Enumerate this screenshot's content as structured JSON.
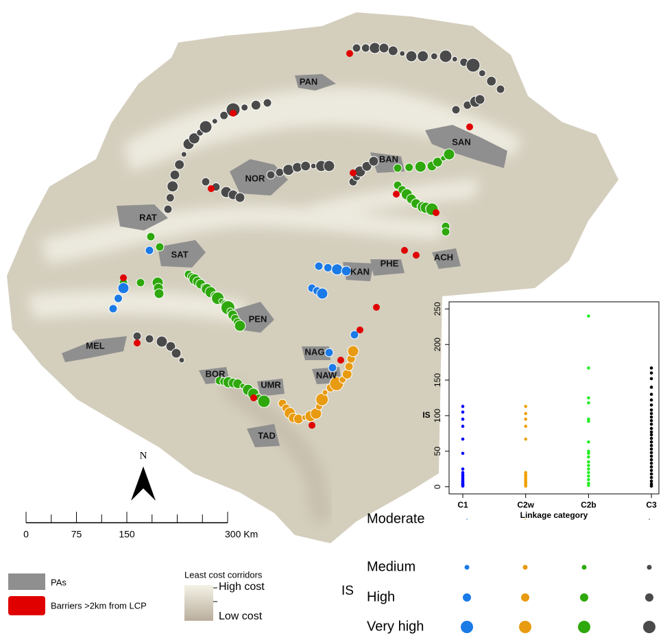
{
  "map": {
    "labels": [
      "PAN",
      "SAN",
      "BAN",
      "NOR",
      "RAT",
      "SAT",
      "PHE",
      "ACH",
      "KAN",
      "PEN",
      "MEL",
      "NAG",
      "NAW",
      "BOR",
      "UMR",
      "TAD"
    ],
    "north": "N",
    "scale_bar": {
      "ticks": [
        0,
        75,
        150,
        {
          "value": 300,
          "label": "300 Km"
        }
      ]
    }
  },
  "legend": {
    "pas": "PAs",
    "barriers": "Barriers >2km from LCP",
    "corridors_title": "Least cost corridors",
    "high_cost": "High cost",
    "low_cost": "Low cost",
    "is_title": "IS",
    "is_levels": [
      "Moderate",
      "Medium",
      "High",
      "Very high"
    ]
  },
  "chart_data": {
    "type": "scatter",
    "x_label": "Linkage category",
    "y_label": "IS",
    "categories": [
      "C1",
      "C2w",
      "C2b",
      "C3"
    ],
    "ylim": [
      -10,
      260
    ],
    "yticks": [
      0,
      50,
      100,
      150,
      200,
      250
    ],
    "series": [
      {
        "color": "#0000ff",
        "values": [
          113,
          105,
          95,
          85,
          67,
          47,
          25,
          20,
          17,
          15,
          12,
          10,
          8,
          7,
          5,
          4,
          3,
          2,
          1
        ]
      },
      {
        "color": "#f0a000",
        "values": [
          113,
          103,
          95,
          85,
          67,
          20,
          17,
          15,
          12,
          10,
          8,
          6,
          4,
          2,
          1
        ]
      },
      {
        "color": "#22ee22",
        "values": [
          240,
          167,
          125,
          118,
          95,
          92,
          63,
          50,
          47,
          42,
          35,
          30,
          25,
          20,
          15,
          10,
          5,
          2
        ]
      },
      {
        "color": "#000000",
        "values": [
          167,
          160,
          152,
          140,
          130,
          122,
          115,
          108,
          103,
          98,
          93,
          88,
          82,
          77,
          73,
          68,
          63,
          58,
          53,
          48,
          43,
          38,
          33,
          28,
          23,
          18,
          13,
          8,
          4,
          1
        ]
      }
    ]
  }
}
